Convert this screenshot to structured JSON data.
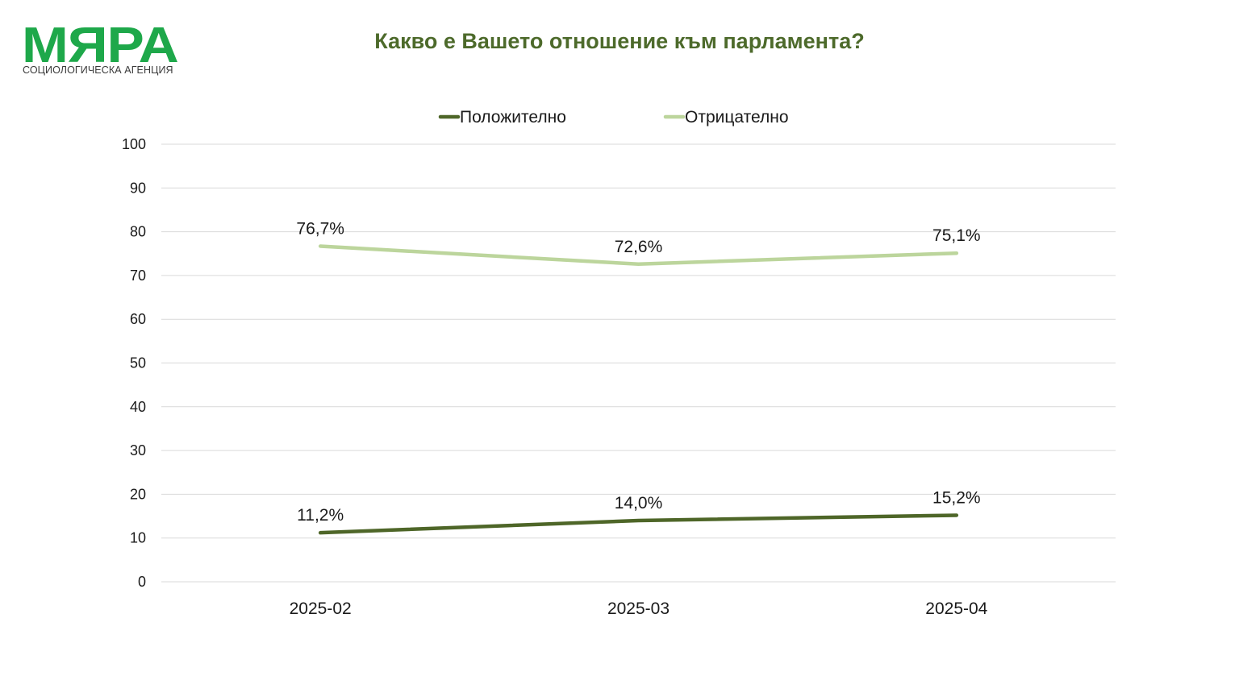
{
  "logo": {
    "wordmark": "МЯРА",
    "subtitle": "СОЦИОЛОГИЧЕСКА АГЕНЦИЯ",
    "color": "#1ea84a"
  },
  "chart_data": {
    "type": "line",
    "title": "Какво е Вашето отношение към парламента?",
    "title_color": "#4d6a2b",
    "categories": [
      "2025-02",
      "2025-03",
      "2025-04"
    ],
    "series": [
      {
        "name": "Положително",
        "values": [
          11.2,
          14.0,
          15.2
        ],
        "labels": [
          "11,2%",
          "14,0%",
          "15,2%"
        ],
        "color": "#4e6628"
      },
      {
        "name": "Отрицателно",
        "values": [
          76.7,
          72.6,
          75.1
        ],
        "labels": [
          "76,7%",
          "72,6%",
          "75,1%"
        ],
        "color": "#bcd59c"
      }
    ],
    "ylim": [
      0,
      100
    ],
    "yticks": [
      "0",
      "10",
      "20",
      "30",
      "40",
      "50",
      "60",
      "70",
      "80",
      "90",
      "100"
    ],
    "grid": true,
    "grid_color": "#d9d9d9",
    "legend_position": "top"
  }
}
